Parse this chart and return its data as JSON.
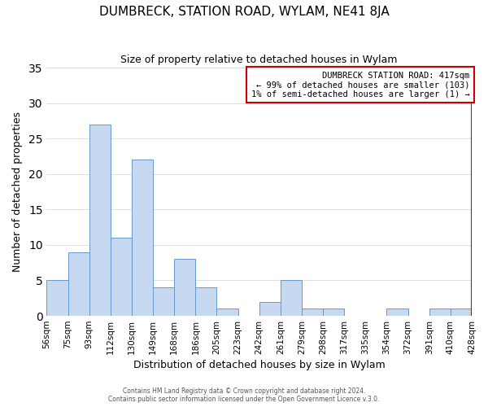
{
  "title": "DUMBRECK, STATION ROAD, WYLAM, NE41 8JA",
  "subtitle": "Size of property relative to detached houses in Wylam",
  "xlabel": "Distribution of detached houses by size in Wylam",
  "ylabel": "Number of detached properties",
  "bin_labels": [
    "56sqm",
    "75sqm",
    "93sqm",
    "112sqm",
    "130sqm",
    "149sqm",
    "168sqm",
    "186sqm",
    "205sqm",
    "223sqm",
    "242sqm",
    "261sqm",
    "279sqm",
    "298sqm",
    "317sqm",
    "335sqm",
    "354sqm",
    "372sqm",
    "391sqm",
    "410sqm",
    "428sqm"
  ],
  "bar_values": [
    5,
    9,
    27,
    11,
    22,
    4,
    8,
    4,
    1,
    0,
    2,
    5,
    1,
    1,
    0,
    0,
    1,
    0,
    1,
    1
  ],
  "bar_color": "#c7d9f0",
  "bar_edge_color": "#6699cc",
  "ylim": [
    0,
    35
  ],
  "yticks": [
    0,
    5,
    10,
    15,
    20,
    25,
    30,
    35
  ],
  "annotation_line1": "DUMBRECK STATION ROAD: 417sqm",
  "annotation_line2": "← 99% of detached houses are smaller (103)",
  "annotation_line3": "1% of semi-detached houses are larger (1) →",
  "footer_line1": "Contains HM Land Registry data © Crown copyright and database right 2024.",
  "footer_line2": "Contains public sector information licensed under the Open Government Licence v.3.0.",
  "background_color": "#ffffff",
  "grid_color": "#dddddd",
  "annotation_box_edge_color": "#cc0000",
  "vertical_line_color": "#cc0000"
}
